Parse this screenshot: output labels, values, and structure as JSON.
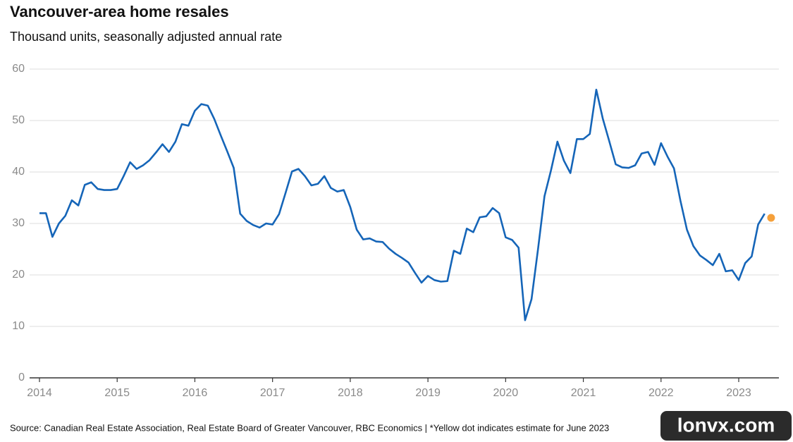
{
  "chart_data": {
    "type": "line",
    "title": "Vancouver-area home resales",
    "subtitle": "Thousand units, seasonally adjusted annual rate",
    "source": "Source: Canadian Real Estate Association, Real Estate Board of Greater Vancouver, RBC Economics | *Yellow dot indicates estimate for June 2023",
    "categories": [
      "2014",
      null,
      null,
      null,
      null,
      null,
      null,
      null,
      null,
      null,
      null,
      null,
      "2015",
      null,
      null,
      null,
      null,
      null,
      null,
      null,
      null,
      null,
      null,
      null,
      "2016",
      null,
      null,
      null,
      null,
      null,
      null,
      null,
      null,
      null,
      null,
      null,
      "2017",
      null,
      null,
      null,
      null,
      null,
      null,
      null,
      null,
      null,
      null,
      null,
      "2018",
      null,
      null,
      null,
      null,
      null,
      null,
      null,
      null,
      null,
      null,
      null,
      "2019",
      null,
      null,
      null,
      null,
      null,
      null,
      null,
      null,
      null,
      null,
      null,
      "2020",
      null,
      null,
      null,
      null,
      null,
      null,
      null,
      null,
      null,
      null,
      null,
      "2021",
      null,
      null,
      null,
      null,
      null,
      null,
      null,
      null,
      null,
      null,
      null,
      "2022",
      null,
      null,
      null,
      null,
      null,
      null,
      null,
      null,
      null,
      null,
      null,
      "2023",
      null,
      null,
      null,
      null,
      null
    ],
    "series": [
      {
        "color": "#1565b8",
        "values": [
          32,
          32,
          27.4,
          30,
          31.5,
          34.5,
          33.5,
          37.5,
          38,
          36.7,
          36.5,
          36.5,
          36.7,
          39.2,
          41.9,
          40.6,
          41.3,
          42.3,
          43.8,
          45.4,
          43.9,
          45.9,
          49.3,
          49,
          51.9,
          53.2,
          52.9,
          50.3,
          47.1,
          44,
          40.8,
          31.9,
          30.5,
          29.7,
          29.2,
          30,
          29.8,
          31.8,
          35.9,
          40.1,
          40.6,
          39.2,
          37.4,
          37.7,
          39.2,
          36.9,
          36.2,
          36.5,
          33.2,
          28.8,
          26.9,
          27.1,
          26.5,
          26.4,
          25.1,
          24.1,
          23.3,
          22.4,
          20.4,
          18.5,
          19.8,
          19,
          18.7,
          18.8,
          24.7,
          24.1,
          29,
          28.3,
          31.2,
          31.4,
          33,
          32,
          27.3,
          26.8,
          25.3,
          11.2,
          15.3,
          25,
          35.3,
          40.3,
          45.9,
          42.2,
          39.8,
          46.4,
          46.4,
          47.4,
          56,
          50.4,
          46,
          41.5,
          40.9,
          40.8,
          41.3,
          43.6,
          43.9,
          41.4,
          45.6,
          43,
          40.7,
          34.4,
          28.8,
          25.6,
          23.8,
          22.9,
          21.9,
          24.1,
          20.7,
          20.9,
          19,
          22.3,
          23.6,
          29.8,
          31.9,
          null
        ]
      },
      {
        "color": "#f5a03a",
        "values": [
          null,
          null,
          null,
          null,
          null,
          null,
          null,
          null,
          null,
          null,
          null,
          null,
          null,
          null,
          null,
          null,
          null,
          null,
          null,
          null,
          null,
          null,
          null,
          null,
          null,
          null,
          null,
          null,
          null,
          null,
          null,
          null,
          null,
          null,
          null,
          null,
          null,
          null,
          null,
          null,
          null,
          null,
          null,
          null,
          null,
          null,
          null,
          null,
          null,
          null,
          null,
          null,
          null,
          null,
          null,
          null,
          null,
          null,
          null,
          null,
          null,
          null,
          null,
          null,
          null,
          null,
          null,
          null,
          null,
          null,
          null,
          null,
          null,
          null,
          null,
          null,
          null,
          null,
          null,
          null,
          null,
          null,
          null,
          null,
          null,
          null,
          null,
          null,
          null,
          null,
          null,
          null,
          null,
          null,
          null,
          null,
          null,
          null,
          null,
          null,
          null,
          null,
          null,
          null,
          null,
          null,
          null,
          null,
          null,
          null,
          null,
          null,
          null,
          31.1
        ]
      }
    ],
    "ylim": [
      0,
      60
    ],
    "yticks": [
      0,
      10,
      20,
      30,
      40,
      50,
      60
    ],
    "grid": true,
    "watermark": "lonvx.com"
  }
}
